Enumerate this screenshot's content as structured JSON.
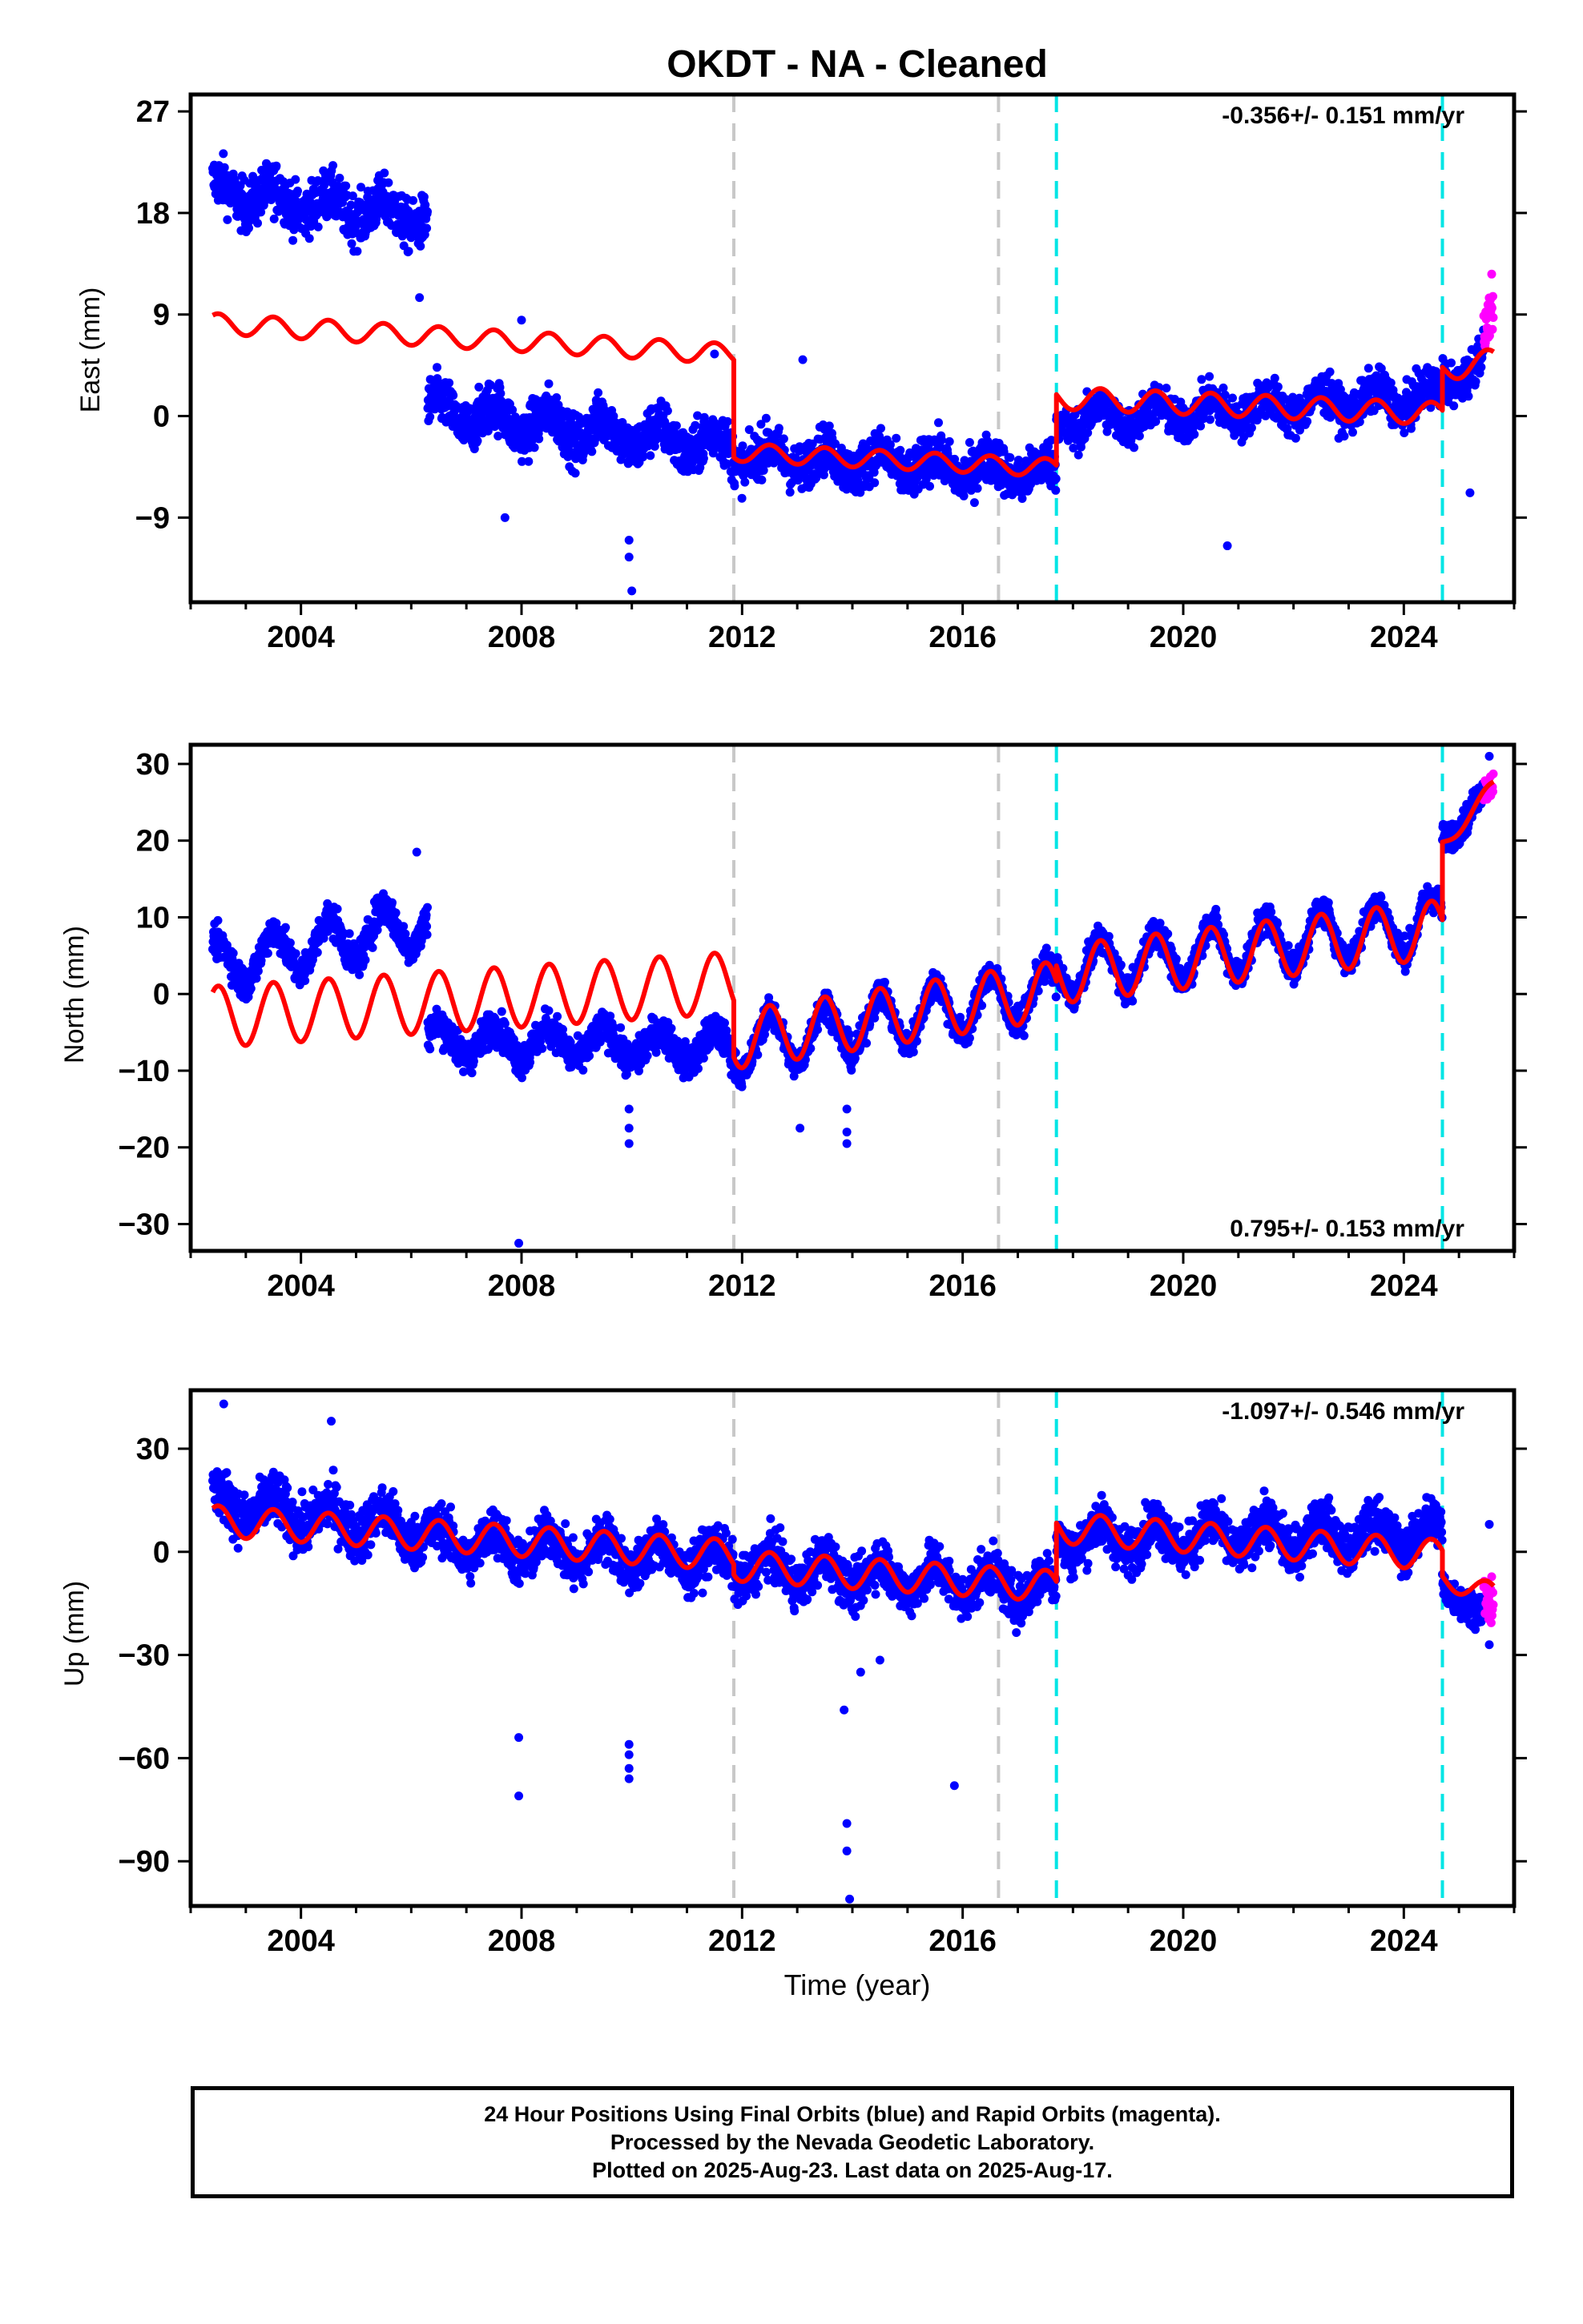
{
  "title": "OKDT  - NA - Cleaned",
  "footer": {
    "line1": "24 Hour Positions Using Final Orbits (blue) and Rapid Orbits (magenta).",
    "line2": "Processed by the Nevada Geodetic Laboratory.",
    "line3": "Plotted on 2025-Aug-23. Last data on 2025-Aug-17."
  },
  "colors": {
    "final": "#0000ff",
    "rapid": "#ff00ff",
    "model": "#ff0000",
    "break_gray": "#c8c8c8",
    "break_cyan": "#00e5e5"
  },
  "chart_data": [
    {
      "type": "scatter",
      "panel": "east",
      "ylabel": "East (mm)",
      "xlabel": "",
      "xlim": [
        2002.0,
        2026.0
      ],
      "ylim": [
        -16.5,
        28.5
      ],
      "xticks": [
        "2004",
        "2008",
        "2012",
        "2016",
        "2020",
        "2024"
      ],
      "yticks": [
        "27",
        "18",
        "9",
        "0",
        "-9"
      ],
      "velocity": "-0.356+/- 0.151 mm/yr",
      "velocity_position": "top-right",
      "breaks_gray": [
        2011.85,
        2016.65
      ],
      "breaks_cyan": [
        2017.7,
        2024.7
      ],
      "final_segments": [
        {
          "start": 2002.4,
          "end": 2006.3,
          "base_start": 20.0,
          "base_end": 17.5,
          "noise": 1.6,
          "amp": 1.0
        },
        {
          "start": 2006.3,
          "end": 2011.85,
          "base_start": 0.5,
          "base_end": -2.8,
          "noise": 1.6,
          "amp": 1.2
        },
        {
          "start": 2011.85,
          "end": 2017.7,
          "base_start": -3.5,
          "base_end": -5.0,
          "noise": 1.5,
          "amp": 1.0
        },
        {
          "start": 2017.7,
          "end": 2024.7,
          "base_start": -0.5,
          "base_end": 1.8,
          "noise": 1.3,
          "amp": 1.0
        },
        {
          "start": 2024.7,
          "end": 2025.45,
          "base_start": 3.0,
          "base_end": 5.0,
          "noise": 1.3,
          "amp": 1.0
        }
      ],
      "rapid_segment": {
        "start": 2025.45,
        "end": 2025.63,
        "base_start": 7.0,
        "base_end": 10.5,
        "noise": 1.5
      },
      "outliers": [
        [
          2009.95,
          -11.0
        ],
        [
          2009.95,
          -12.5
        ],
        [
          2010.0,
          -15.5
        ],
        [
          2008.0,
          8.5
        ],
        [
          2011.5,
          5.5
        ],
        [
          2013.1,
          5.0
        ],
        [
          2007.7,
          -9.0
        ],
        [
          2020.8,
          -11.5
        ],
        [
          2025.2,
          -6.8
        ],
        [
          2006.15,
          10.5
        ]
      ],
      "model_segments": [
        {
          "start": 2002.4,
          "end": 2011.85,
          "base_start": 8.2,
          "base_end": 5.5,
          "amp": 0.9
        },
        {
          "start": 2011.85,
          "end": 2017.7,
          "base_start": -3.2,
          "base_end": -4.6,
          "amp": 0.8
        },
        {
          "start": 2017.7,
          "end": 2024.7,
          "base_start": 1.6,
          "base_end": 0.2,
          "amp": 1.0
        },
        {
          "start": 2024.7,
          "end": 2025.63,
          "base_start": 4.0,
          "base_end": 5.0,
          "amp": 1.0
        }
      ]
    },
    {
      "type": "scatter",
      "panel": "north",
      "ylabel": "North (mm)",
      "xlabel": "",
      "xlim": [
        2002.0,
        2026.0
      ],
      "ylim": [
        -33.5,
        32.5
      ],
      "xticks": [
        "2004",
        "2008",
        "2012",
        "2016",
        "2020",
        "2024"
      ],
      "yticks": [
        "30",
        "20",
        "10",
        "0",
        "-10",
        "-20",
        "-30"
      ],
      "velocity": "0.795+/- 0.153 mm/yr",
      "velocity_position": "bottom-right",
      "breaks_gray": [
        2011.85,
        2016.65
      ],
      "breaks_cyan": [
        2017.7,
        2024.7
      ],
      "final_segments": [
        {
          "start": 2002.4,
          "end": 2006.3,
          "base_start": 3.5,
          "base_end": 9.5,
          "noise": 1.6,
          "amp": 3.0
        },
        {
          "start": 2006.3,
          "end": 2011.85,
          "base_start": -6.0,
          "base_end": -7.0,
          "noise": 1.6,
          "amp": 2.0
        },
        {
          "start": 2011.85,
          "end": 2017.7,
          "base_start": -7.0,
          "base_end": 0.5,
          "noise": 1.4,
          "amp": 3.5
        },
        {
          "start": 2017.7,
          "end": 2024.7,
          "base_start": 3.0,
          "base_end": 9.5,
          "noise": 1.4,
          "amp": 3.5
        },
        {
          "start": 2024.7,
          "end": 2025.45,
          "base_start": 20.0,
          "base_end": 26.0,
          "noise": 1.3,
          "amp": 1.0
        }
      ],
      "rapid_segment": {
        "start": 2025.45,
        "end": 2025.63,
        "base_start": 26.5,
        "base_end": 27.5,
        "noise": 1.2
      },
      "outliers": [
        [
          2007.95,
          -32.5
        ],
        [
          2009.95,
          -15.0
        ],
        [
          2009.95,
          -17.5
        ],
        [
          2009.95,
          -19.5
        ],
        [
          2013.05,
          -17.5
        ],
        [
          2013.9,
          -15.0
        ],
        [
          2013.9,
          -18.0
        ],
        [
          2013.9,
          -19.5
        ],
        [
          2006.1,
          18.5
        ],
        [
          2025.55,
          31.0
        ]
      ],
      "model_segments": [
        {
          "start": 2002.4,
          "end": 2011.85,
          "base_start": -3.0,
          "base_end": 1.5,
          "amp": 4.0
        },
        {
          "start": 2011.85,
          "end": 2017.7,
          "base_start": -6.0,
          "base_end": 0.5,
          "amp": 3.8
        },
        {
          "start": 2017.7,
          "end": 2024.7,
          "base_start": 2.5,
          "base_end": 8.5,
          "amp": 3.8
        },
        {
          "start": 2024.7,
          "end": 2025.63,
          "base_start": 19.5,
          "base_end": 27.0,
          "amp": 1.0
        }
      ]
    },
    {
      "type": "scatter",
      "panel": "up",
      "ylabel": "Up (mm)",
      "xlabel": "Time (year)",
      "xlim": [
        2002.0,
        2026.0
      ],
      "ylim": [
        -103.0,
        47.0
      ],
      "xticks": [
        "2004",
        "2008",
        "2012",
        "2016",
        "2020",
        "2024"
      ],
      "yticks": [
        "30",
        "0",
        "-30",
        "-60",
        "-90"
      ],
      "velocity": "-1.097+/- 0.546 mm/yr",
      "velocity_position": "top-right",
      "breaks_gray": [
        2011.85,
        2016.65
      ],
      "breaks_cyan": [
        2017.7,
        2024.7
      ],
      "final_segments": [
        {
          "start": 2002.4,
          "end": 2006.3,
          "base_start": 14.0,
          "base_end": 6.0,
          "noise": 5.5,
          "amp": 4.0
        },
        {
          "start": 2006.3,
          "end": 2011.85,
          "base_start": 3.0,
          "base_end": -3.0,
          "noise": 5.0,
          "amp": 4.5
        },
        {
          "start": 2011.85,
          "end": 2017.7,
          "base_start": -4.0,
          "base_end": -11.0,
          "noise": 5.0,
          "amp": 4.5
        },
        {
          "start": 2017.7,
          "end": 2024.7,
          "base_start": 4.0,
          "base_end": 5.0,
          "noise": 5.0,
          "amp": 4.5
        },
        {
          "start": 2024.7,
          "end": 2025.45,
          "base_start": -10.0,
          "base_end": -18.0,
          "noise": 3.5,
          "amp": 1.0
        }
      ],
      "rapid_segment": {
        "start": 2025.45,
        "end": 2025.63,
        "base_start": -12.0,
        "base_end": -18.0,
        "noise": 5.0
      },
      "outliers": [
        [
          2007.95,
          -54.0
        ],
        [
          2007.95,
          -71.0
        ],
        [
          2009.95,
          -56.0
        ],
        [
          2009.95,
          -59.0
        ],
        [
          2009.95,
          -63.0
        ],
        [
          2009.95,
          -66.0
        ],
        [
          2013.85,
          -46.0
        ],
        [
          2013.9,
          -79.0
        ],
        [
          2013.9,
          -87.0
        ],
        [
          2013.95,
          -101.0
        ],
        [
          2015.85,
          -68.0
        ],
        [
          2014.15,
          -35.0
        ],
        [
          2014.5,
          -31.5
        ],
        [
          2002.6,
          43.0
        ],
        [
          2004.55,
          38.0
        ],
        [
          2025.55,
          8.0
        ],
        [
          2025.55,
          -27.0
        ]
      ],
      "model_segments": [
        {
          "start": 2002.4,
          "end": 2011.85,
          "base_start": 9.0,
          "base_end": -1.0,
          "amp": 4.5
        },
        {
          "start": 2011.85,
          "end": 2017.7,
          "base_start": -4.0,
          "base_end": -10.0,
          "amp": 4.5
        },
        {
          "start": 2017.7,
          "end": 2024.7,
          "base_start": 7.0,
          "base_end": -1.0,
          "amp": 4.5
        },
        {
          "start": 2024.7,
          "end": 2025.63,
          "base_start": -8.0,
          "base_end": -12.0,
          "amp": 3.0
        }
      ]
    }
  ]
}
